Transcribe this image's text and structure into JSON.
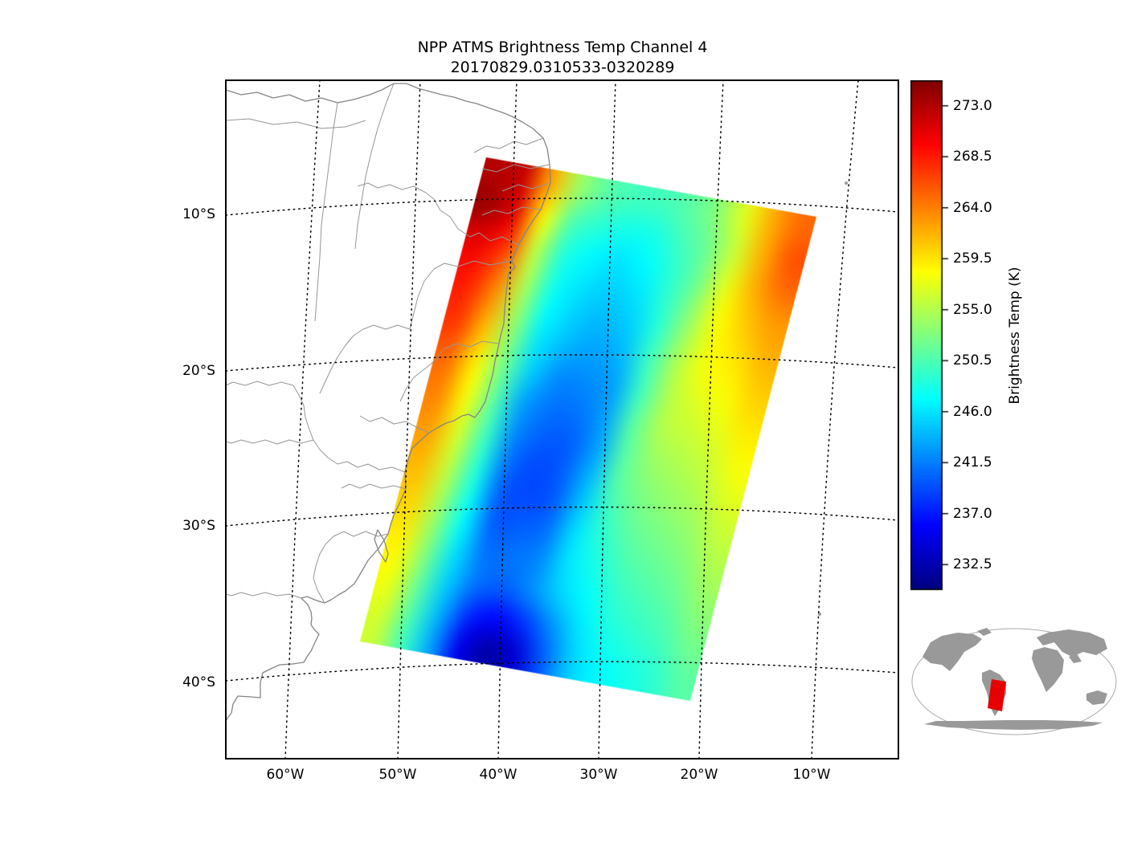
{
  "title": {
    "line1": "NPP ATMS Brightness Temp Channel 4",
    "line2": "20170829.0310533-0320289"
  },
  "axes": {
    "lat_tick_labels": [
      "10°S",
      "20°S",
      "30°S",
      "40°S"
    ],
    "lon_tick_labels": [
      "60°W",
      "50°W",
      "40°W",
      "30°W",
      "20°W",
      "10°W"
    ]
  },
  "colorbar": {
    "label": "Brightness Temp (K)",
    "tick_labels": [
      "273.0",
      "268.5",
      "264.0",
      "259.5",
      "255.0",
      "250.5",
      "246.0",
      "241.5",
      "237.0",
      "232.5"
    ]
  },
  "inset": {
    "description": "world map inset showing swath location over the South Atlantic",
    "highlight_color": "#e60000",
    "land_color": "#999999"
  },
  "chart_data": {
    "type": "heatmap",
    "title": "NPP ATMS Brightness Temp Channel 4",
    "subtitle": "20170829.0310533-0320289",
    "units": "K",
    "colormap": "jet",
    "value_range": [
      230.25,
      275.25
    ],
    "colorbar_label": "Brightness Temp (K)",
    "colorbar_ticks": [
      273.0,
      268.5,
      264.0,
      259.5,
      255.0,
      250.5,
      246.0,
      241.5,
      237.0,
      232.5
    ],
    "lat_gridlines_deg": [
      -10,
      -20,
      -30,
      -40
    ],
    "lon_gridlines_deg": [
      -60,
      -50,
      -40,
      -30,
      -20,
      -10
    ],
    "approx_lon_range": [
      -66,
      -2
    ],
    "approx_lat_range": [
      -43,
      -1
    ],
    "grid_on": true,
    "legend_position": "right-colorbar",
    "swath_grid": {
      "description": "approximate brightness temperatures (K) across the tilted satellite swath, row-major from the northwest corner; 16 rows (N to S) x 12 cols (W to E)",
      "rows": 16,
      "cols": 12,
      "values": [
        [
          273,
          272,
          262,
          254,
          251,
          250,
          250,
          251,
          253,
          257,
          262,
          265
        ],
        [
          274,
          271,
          259,
          251,
          249,
          248,
          248,
          250,
          252,
          256,
          262,
          266
        ],
        [
          271,
          268,
          256,
          249,
          247,
          246,
          247,
          249,
          252,
          257,
          262,
          265
        ],
        [
          269,
          265,
          255,
          248,
          246,
          245,
          246,
          249,
          253,
          258,
          261,
          263
        ],
        [
          268,
          263,
          254,
          247,
          245,
          244,
          245,
          249,
          254,
          258,
          260,
          262
        ],
        [
          267,
          261,
          253,
          246,
          244,
          243,
          244,
          250,
          255,
          258,
          259,
          261
        ],
        [
          265,
          259,
          252,
          245,
          242,
          242,
          243,
          250,
          255,
          257,
          258,
          260
        ],
        [
          264,
          258,
          251,
          243,
          241,
          241,
          243,
          251,
          255,
          256,
          257,
          259
        ],
        [
          263,
          257,
          250,
          242,
          240,
          240,
          243,
          251,
          254,
          255,
          256,
          258
        ],
        [
          262,
          256,
          249,
          241,
          239,
          240,
          244,
          251,
          253,
          254,
          255,
          257
        ],
        [
          261,
          255,
          248,
          240,
          239,
          240,
          245,
          250,
          252,
          253,
          254,
          256
        ],
        [
          260,
          254,
          247,
          240,
          240,
          241,
          246,
          249,
          251,
          252,
          253,
          255
        ],
        [
          259,
          253,
          246,
          241,
          241,
          242,
          246,
          248,
          250,
          251,
          252,
          254
        ],
        [
          258,
          252,
          245,
          241,
          240,
          242,
          245,
          247,
          249,
          250,
          251,
          253
        ],
        [
          257,
          251,
          244,
          238,
          236,
          238,
          242,
          246,
          248,
          249,
          250,
          252
        ],
        [
          256,
          250,
          243,
          235,
          232,
          234,
          240,
          245,
          247,
          248,
          249,
          251
        ]
      ]
    }
  }
}
